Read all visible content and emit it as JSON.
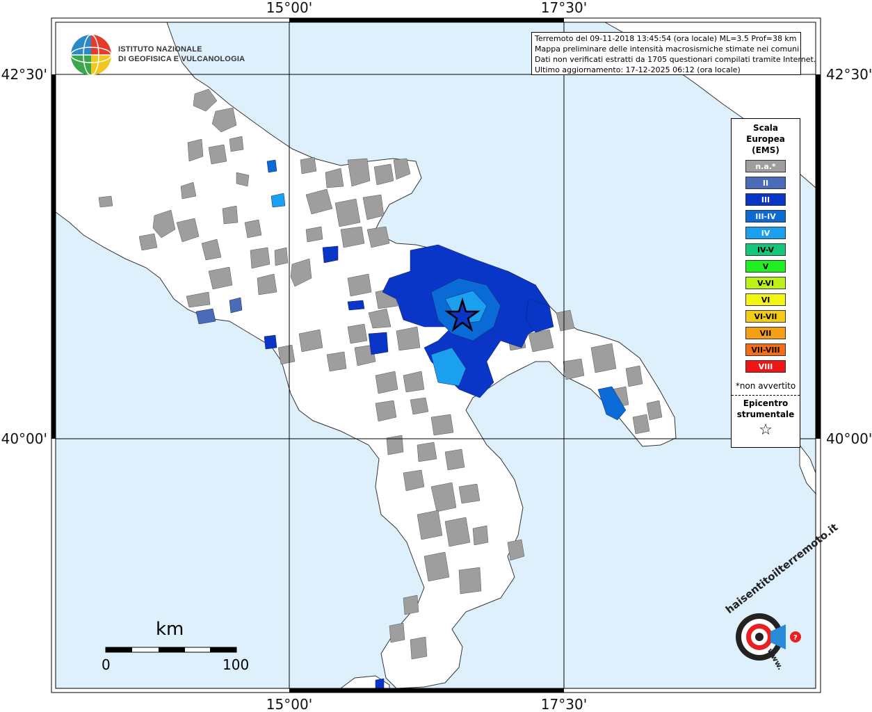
{
  "map": {
    "coords": {
      "lon_top_left": "15°00'",
      "lon_top_right": "17°30'",
      "lon_bottom_left": "15°00'",
      "lon_bottom_right": "17°30'",
      "lat_upper_left": "42°30'",
      "lat_upper_right": "42°30'",
      "lat_lower_left": "40°00'",
      "lat_lower_right": "40°00'"
    },
    "colors": {
      "sea": "#ddf0fc",
      "land": "#ffffff",
      "not_felt": "#9e9e9e",
      "grid": "#000000"
    }
  },
  "logo": {
    "line1": "ISTITUTO NAZIONALE",
    "line2": "DI GEOFISICA E VULCANOLOGIA",
    "icon": "ingv-globe-icon"
  },
  "info": {
    "line1": "Terremoto del 09-11-2018 13:45:54 (ora locale) ML=3.5 Prof=38 km",
    "line2": "Mappa preliminare delle intensità macrosismiche stimate nei comuni",
    "line3": "Dati non verificati estratti da 1705 questionari compilati tramite Internet.",
    "line4": "Ultimo aggiornamento: 17-12-2025 06:12 (ora locale)"
  },
  "legend": {
    "title1": "Scala",
    "title2": "Europea",
    "title3": "(EMS)",
    "items": [
      {
        "label": "n.a.*",
        "color": "#9e9e9e",
        "text_color": "#ffffff"
      },
      {
        "label": "II",
        "color": "#4a6bb8",
        "text_color": "#ffffff"
      },
      {
        "label": "III",
        "color": "#0a36c8",
        "text_color": "#ffffff"
      },
      {
        "label": "III-IV",
        "color": "#0a6ad6",
        "text_color": "#ffffff"
      },
      {
        "label": "IV",
        "color": "#1aa0ee",
        "text_color": "#ffffff"
      },
      {
        "label": "IV-V",
        "color": "#14c87a",
        "text_color": "#000000"
      },
      {
        "label": "V",
        "color": "#20f020",
        "text_color": "#000000"
      },
      {
        "label": "V-VI",
        "color": "#bef01a",
        "text_color": "#000000"
      },
      {
        "label": "VI",
        "color": "#f5f514",
        "text_color": "#000000"
      },
      {
        "label": "VI-VII",
        "color": "#f5cc14",
        "text_color": "#000000"
      },
      {
        "label": "VII",
        "color": "#f5a014",
        "text_color": "#000000"
      },
      {
        "label": "VII-VIII",
        "color": "#f56e14",
        "text_color": "#000000"
      },
      {
        "label": "VIII",
        "color": "#f01414",
        "text_color": "#ffffff"
      }
    ],
    "note": "*non avvertito",
    "epi1": "Epicentro",
    "epi2": "strumentale",
    "epi_symbol": "☆"
  },
  "scale_bar": {
    "unit": "km",
    "start": "0",
    "end": "100"
  },
  "branding": {
    "name": "haisentitoilterremoto.it",
    "url": "www.",
    "icon": "target-megaphone-icon"
  }
}
